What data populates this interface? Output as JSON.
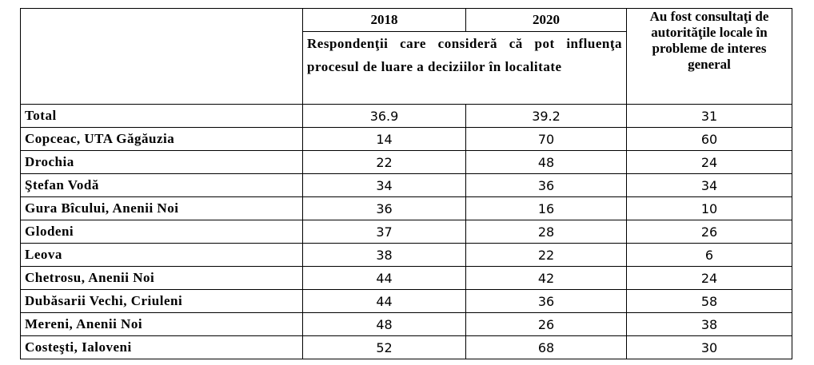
{
  "header": {
    "years": [
      "2018",
      "2020"
    ],
    "respondents": "Respondenţii care consideră că pot influenţa procesul de luare a deciziilor în localitate",
    "consulted": "Au fost consultaţi de autorităţile locale în probleme de interes general"
  },
  "table": {
    "rows": [
      {
        "label": "Total",
        "values": [
          36.9,
          39.2,
          31
        ]
      },
      {
        "label": "Copceac, UTA Găgăuzia",
        "values": [
          14,
          70,
          60
        ]
      },
      {
        "label": "Drochia",
        "values": [
          22,
          48,
          24
        ]
      },
      {
        "label": "Ştefan Vodă",
        "values": [
          34,
          36,
          34
        ]
      },
      {
        "label": "Gura Bîcului, Anenii Noi",
        "values": [
          36,
          16,
          10
        ]
      },
      {
        "label": "Glodeni",
        "values": [
          37,
          28,
          26
        ]
      },
      {
        "label": "Leova",
        "values": [
          38,
          22,
          6
        ]
      },
      {
        "label": "Chetrosu, Anenii Noi",
        "values": [
          44,
          42,
          24
        ]
      },
      {
        "label": "Dubăsarii Vechi, Criuleni",
        "values": [
          44,
          36,
          58
        ]
      },
      {
        "label": "Mereni, Anenii Noi",
        "values": [
          48,
          26,
          38
        ]
      },
      {
        "label": "Costeşti, Ialoveni",
        "values": [
          52,
          68,
          30
        ]
      }
    ]
  }
}
